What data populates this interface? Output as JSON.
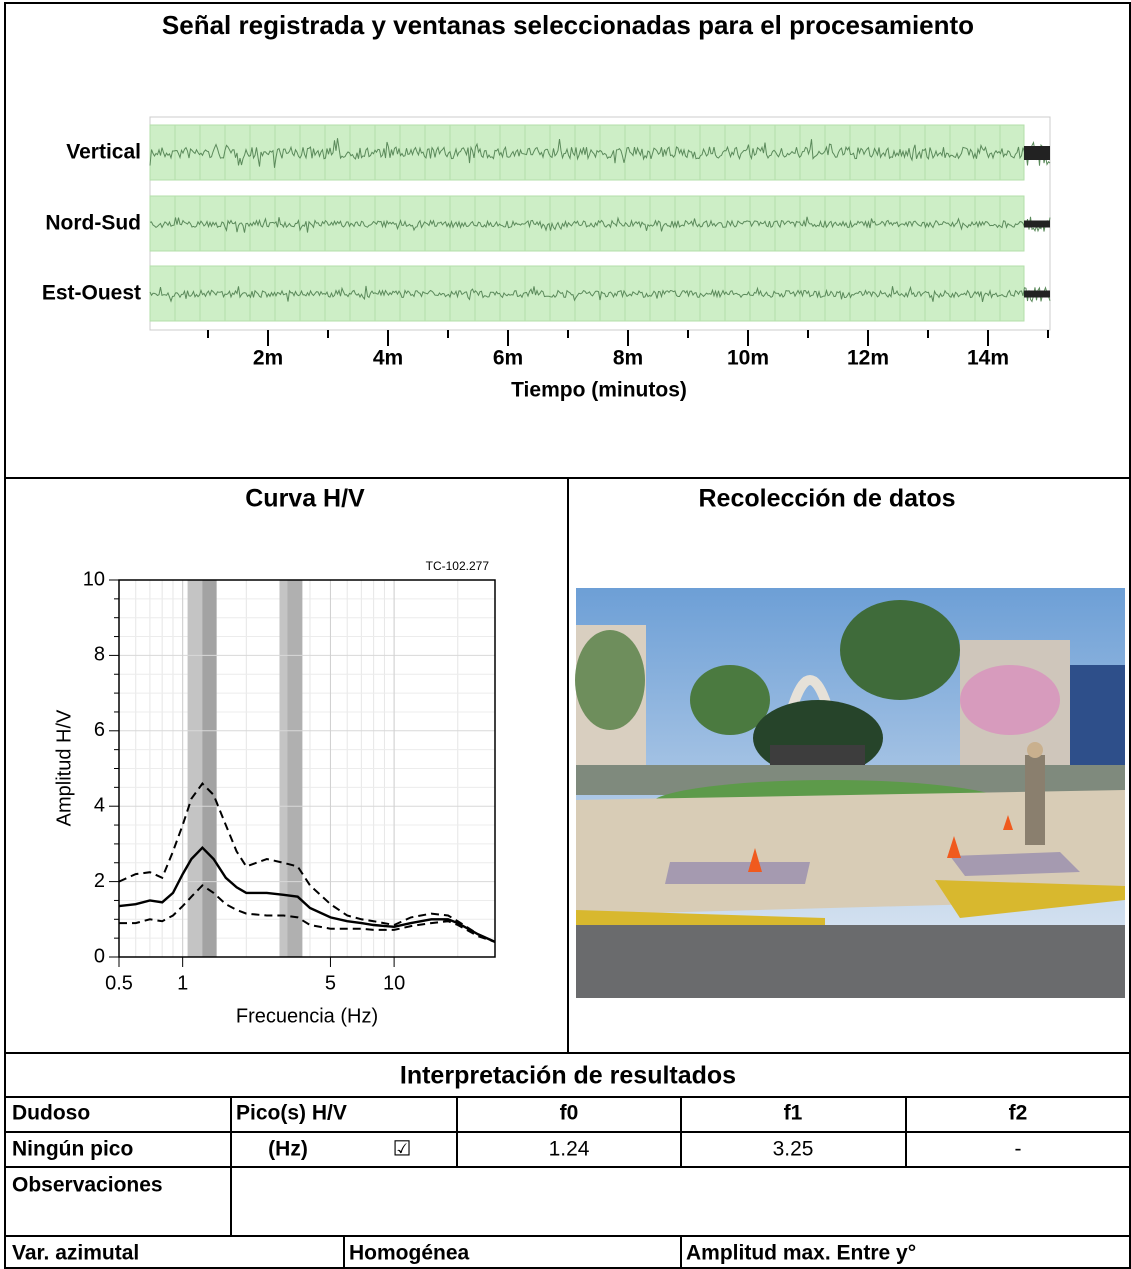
{
  "chart_data": [
    {
      "type": "waveform",
      "title": "Señal registrada y ventanas seleccionadas para el procesamiento",
      "channels": [
        "Vertical",
        "Nord-Sud",
        "Est-Ouest"
      ],
      "color": "#5b8a5b",
      "xlim": [
        0,
        15
      ],
      "xticks": [
        {
          "value": 2,
          "label": "2m"
        },
        {
          "value": 4,
          "label": "4m"
        },
        {
          "value": 6,
          "label": "6m"
        },
        {
          "value": 8,
          "label": "8m"
        },
        {
          "value": 10,
          "label": "10m"
        },
        {
          "value": 12,
          "label": "12m"
        },
        {
          "value": 14,
          "label": "14m"
        }
      ],
      "xminorticks": [
        1,
        3,
        5,
        7,
        9,
        11,
        13,
        15
      ],
      "xlabel": "Tiempo (minutos)"
    },
    {
      "type": "line",
      "title": "Curva H/V",
      "annotation": "TC-102.277",
      "xscale": "log",
      "grid": true,
      "xlim": [
        0.5,
        30
      ],
      "ylim": [
        0,
        10
      ],
      "xticks": [
        0.5,
        1,
        5,
        10
      ],
      "yticks": [
        0,
        2,
        4,
        6,
        8,
        10
      ],
      "xlabel": "Frecuencia (Hz)",
      "ylabel": "Amplitud H/V",
      "shaded_ranges": [
        {
          "from": 1.055,
          "to": 1.447,
          "color": "#c4c4c4"
        },
        {
          "from": 1.24,
          "to": 1.447,
          "color": "#a3a3a3"
        },
        {
          "from": 2.87,
          "to": 3.68,
          "color": "#c4c4c4"
        },
        {
          "from": 3.13,
          "to": 3.68,
          "color": "#b0b0b0"
        }
      ],
      "x": [
        0.5,
        0.6,
        0.7,
        0.8,
        0.9,
        1.0,
        1.1,
        1.24,
        1.4,
        1.6,
        1.8,
        2,
        2.5,
        3,
        3.5,
        4,
        5,
        6,
        7,
        8,
        10,
        12,
        15,
        18,
        20,
        25,
        30
      ],
      "series": [
        {
          "color": "#000000",
          "dash": false,
          "values": [
            1.35,
            1.4,
            1.5,
            1.45,
            1.7,
            2.2,
            2.6,
            2.9,
            2.6,
            2.1,
            1.85,
            1.7,
            1.7,
            1.65,
            1.6,
            1.3,
            1.05,
            0.95,
            0.9,
            0.85,
            0.8,
            0.9,
            1.0,
            1.0,
            0.9,
            0.6,
            0.4
          ]
        },
        {
          "color": "#000000",
          "dash": true,
          "values": [
            2.0,
            2.2,
            2.25,
            2.1,
            2.8,
            3.5,
            4.2,
            4.6,
            4.3,
            3.5,
            2.8,
            2.4,
            2.6,
            2.5,
            2.4,
            1.9,
            1.4,
            1.1,
            1.0,
            0.95,
            0.85,
            1.05,
            1.15,
            1.1,
            0.95,
            0.6,
            0.4
          ]
        },
        {
          "color": "#000000",
          "dash": true,
          "values": [
            0.9,
            0.9,
            1.0,
            0.95,
            1.1,
            1.35,
            1.6,
            1.9,
            1.7,
            1.4,
            1.25,
            1.15,
            1.1,
            1.1,
            1.05,
            0.85,
            0.75,
            0.75,
            0.75,
            0.72,
            0.72,
            0.82,
            0.9,
            0.95,
            0.85,
            0.55,
            0.4
          ]
        }
      ]
    }
  ],
  "photo_panel": {
    "title": "Recolección de datos"
  },
  "table": {
    "title": "Interpretación de resultados",
    "rows": [
      [
        "Dudoso",
        "Pico(s) H/V",
        "f0",
        "f1",
        "f2"
      ],
      [
        "Ningún pico",
        "(Hz)",
        "☑",
        "1.24",
        "3.25",
        "-"
      ],
      [
        "Observaciones"
      ],
      [
        "Var. azimutal",
        "Homogénea",
        "Amplitud max. Entre y°"
      ]
    ]
  }
}
